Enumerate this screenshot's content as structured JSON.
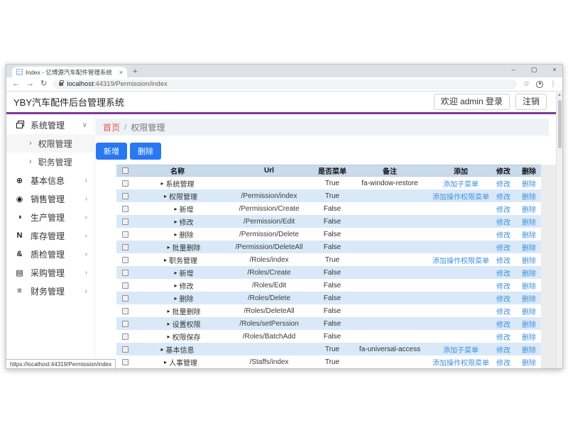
{
  "browser": {
    "tab": {
      "title": "Index - 亿博源汽车配件管理系统",
      "close_glyph": "×",
      "new_tab_glyph": "+"
    },
    "window_controls": {
      "minimize": "–",
      "maximize": "▢",
      "close": "×"
    },
    "nav": {
      "back": "←",
      "forward": "→",
      "reload": "↻"
    },
    "omnibox": {
      "host": "localhost",
      "path": ":44319/Permission/index"
    },
    "actions": {
      "bookmark": "☆",
      "menu": "⋮"
    },
    "scroll_up_glyph": "▲",
    "status_link": "https://localhost:44319/Permission/index"
  },
  "app": {
    "title": "YBY汽车配件后台管理系统",
    "welcome_button": "欢迎 admin 登录",
    "logout_button": "注销"
  },
  "colors": {
    "accent_purple": "#7d3a98",
    "primary_blue": "#2878f2",
    "link_blue": "#3f8fdd",
    "stripe_blue": "#d9e9f8",
    "table_header_blue": "#c9daeb",
    "breadcrumb_home_red": "#e2574d"
  },
  "sidebar": {
    "items": [
      {
        "key": "system",
        "label": "系统管理",
        "icon": "window-restore-icon",
        "glyph": "",
        "chevron": "∨",
        "expanded": true,
        "children": [
          {
            "key": "permission",
            "label": "权限管理",
            "arrow": "›",
            "active": true
          },
          {
            "key": "roles",
            "label": "职务管理",
            "arrow": "›",
            "active": false
          }
        ]
      },
      {
        "key": "basic-info",
        "label": "基本信息",
        "icon": "universal-access-icon",
        "glyph": "⊕",
        "chevron": "›"
      },
      {
        "key": "sales",
        "label": "销售管理",
        "icon": "dot-circle-icon",
        "glyph": "◉",
        "chevron": "›"
      },
      {
        "key": "production",
        "label": "生产管理",
        "icon": "adjust-icon",
        "glyph": "◑",
        "chevron": "›"
      },
      {
        "key": "inventory",
        "label": "库存管理",
        "icon": "note-icon",
        "glyph": "N",
        "chevron": "›"
      },
      {
        "key": "quality",
        "label": "质检管理",
        "icon": "link-icon",
        "glyph": "&",
        "chevron": "›"
      },
      {
        "key": "purchase",
        "label": "采购管理",
        "icon": "th-list-icon",
        "glyph": "▤",
        "chevron": "›"
      },
      {
        "key": "finance",
        "label": "财务管理",
        "icon": "bars-icon",
        "glyph": "≡",
        "chevron": "›"
      }
    ]
  },
  "breadcrumb": {
    "home": "首页",
    "separator": "/",
    "current": "权限管理"
  },
  "toolbar": {
    "add": "新增",
    "delete": "删除"
  },
  "table": {
    "caret_glyph": "▸",
    "headers": [
      "名称",
      "Url",
      "是否菜单",
      "备注",
      "添加",
      "修改",
      "删除"
    ],
    "edit_label": "修改",
    "delete_label": "删除",
    "rows": [
      {
        "name": "系统管理",
        "level": 0,
        "url": "",
        "is_menu": "True",
        "remark": "fa-window-restore",
        "add": "添加子菜单"
      },
      {
        "name": "权限管理",
        "level": 1,
        "url": "/Permission/index",
        "is_menu": "True",
        "remark": "",
        "add": "添加操作权限菜单"
      },
      {
        "name": "新增",
        "level": 2,
        "url": "/Permission/Create",
        "is_menu": "False",
        "remark": "",
        "add": ""
      },
      {
        "name": "修改",
        "level": 2,
        "url": "/Permission/Edit",
        "is_menu": "False",
        "remark": "",
        "add": ""
      },
      {
        "name": "删除",
        "level": 2,
        "url": "/Permission/Delete",
        "is_menu": "False",
        "remark": "",
        "add": ""
      },
      {
        "name": "批量删除",
        "level": 2,
        "url": "/Permission/DeleteAll",
        "is_menu": "False",
        "remark": "",
        "add": ""
      },
      {
        "name": "职务管理",
        "level": 1,
        "url": "/Roles/index",
        "is_menu": "True",
        "remark": "",
        "add": "添加操作权限菜单"
      },
      {
        "name": "新增",
        "level": 2,
        "url": "/Roles/Create",
        "is_menu": "False",
        "remark": "",
        "add": ""
      },
      {
        "name": "修改",
        "level": 2,
        "url": "/Roles/Edit",
        "is_menu": "False",
        "remark": "",
        "add": ""
      },
      {
        "name": "删除",
        "level": 2,
        "url": "/Roles/Delete",
        "is_menu": "False",
        "remark": "",
        "add": ""
      },
      {
        "name": "批量删除",
        "level": 2,
        "url": "/Roles/DeleteAll",
        "is_menu": "False",
        "remark": "",
        "add": ""
      },
      {
        "name": "设置权限",
        "level": 2,
        "url": "/Roles/setPerssion",
        "is_menu": "False",
        "remark": "",
        "add": ""
      },
      {
        "name": "权限保存",
        "level": 2,
        "url": "/Roles/BatchAdd",
        "is_menu": "False",
        "remark": "",
        "add": ""
      },
      {
        "name": "基本信息",
        "level": 0,
        "url": "",
        "is_menu": "True",
        "remark": "fa-universal-access",
        "add": "添加子菜单"
      },
      {
        "name": "人事管理",
        "level": 1,
        "url": "/Staffs/index",
        "is_menu": "True",
        "remark": "",
        "add": "添加操作权限菜单"
      }
    ]
  }
}
